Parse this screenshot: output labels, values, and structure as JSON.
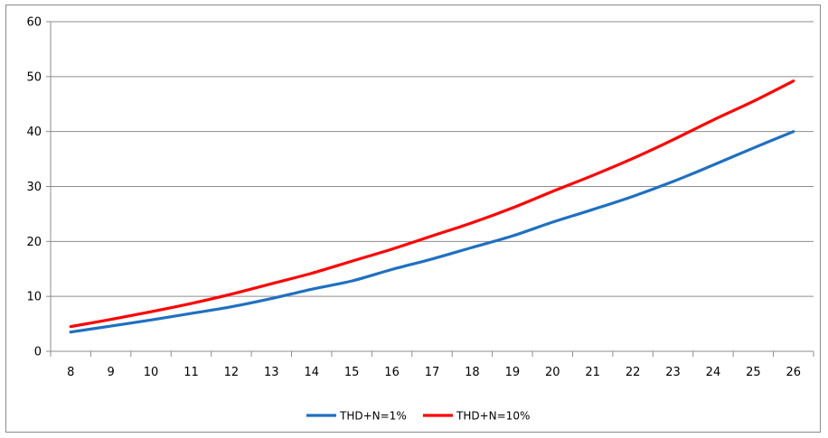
{
  "chart_data": {
    "type": "line",
    "categories": [
      8,
      9,
      10,
      11,
      12,
      13,
      14,
      15,
      16,
      17,
      18,
      19,
      20,
      21,
      22,
      23,
      24,
      25,
      26
    ],
    "series": [
      {
        "name": "THD+N=1%",
        "color": "#1f70c1",
        "values": [
          3.5,
          4.6,
          5.7,
          6.9,
          8.1,
          9.6,
          11.3,
          12.8,
          14.9,
          16.8,
          18.9,
          21.0,
          23.5,
          25.8,
          28.2,
          30.9,
          33.9,
          37.0,
          40.0
        ]
      },
      {
        "name": "THD+N=10%",
        "color": "#ff0000",
        "values": [
          4.5,
          5.8,
          7.2,
          8.7,
          10.4,
          12.3,
          14.2,
          16.4,
          18.6,
          21.0,
          23.4,
          26.1,
          29.1,
          32.0,
          35.1,
          38.5,
          42.1,
          45.5,
          49.2
        ]
      }
    ],
    "yticks": [
      0,
      10,
      20,
      30,
      40,
      50,
      60
    ],
    "ylim": [
      0,
      60
    ],
    "grid": "horizontal",
    "legend_position": "bottom"
  }
}
